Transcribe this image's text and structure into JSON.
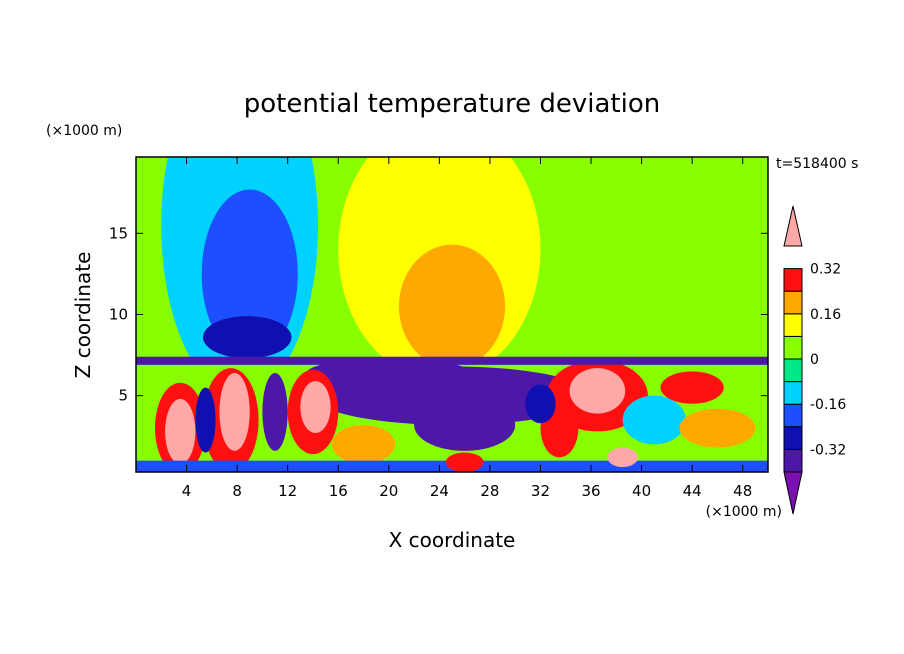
{
  "chart_data": {
    "type": "heatmap",
    "title": "potential temperature deviation",
    "xlabel": "X coordinate",
    "ylabel": "Z coordinate",
    "x_unit": "(×1000 m)",
    "y_unit": "(×1000 m)",
    "time_label": "t=518400 s",
    "xlim": [
      0,
      50
    ],
    "ylim": [
      0.3,
      19.7
    ],
    "x_ticks": [
      4,
      8,
      12,
      16,
      20,
      24,
      28,
      32,
      36,
      40,
      44,
      48
    ],
    "y_ticks": [
      5,
      10,
      15
    ],
    "colorbar": {
      "levels": [
        -0.4,
        -0.32,
        -0.24,
        -0.16,
        -0.08,
        0,
        0.08,
        0.16,
        0.24,
        0.32,
        0.4
      ],
      "labels": [
        "0.32",
        "0.16",
        "0",
        "-0.16",
        "-0.32"
      ],
      "label_values": [
        0.32,
        0.16,
        0,
        -0.16,
        -0.32
      ],
      "colors_bottom_to_top": [
        "#7b10b0",
        "#4d17a8",
        "#1010b0",
        "#1e4fff",
        "#00d2ff",
        "#00e888",
        "#88ff00",
        "#ffff00",
        "#ffa800",
        "#ff1010",
        "#ffa8a8"
      ],
      "extend": "both"
    },
    "regions": [
      {
        "type": "rect",
        "x": [
          0,
          50
        ],
        "z": [
          7.2,
          19.7
        ],
        "value": 0.04
      },
      {
        "type": "ellipse",
        "cx": 8.2,
        "cz": 15.5,
        "rx": 6.2,
        "rz": 10.5,
        "value": -0.12
      },
      {
        "type": "ellipse",
        "cx": 9.0,
        "cz": 12.5,
        "rx": 3.8,
        "rz": 5.2,
        "value": -0.2
      },
      {
        "type": "ellipse",
        "cx": 8.8,
        "cz": 8.6,
        "rx": 3.5,
        "rz": 1.3,
        "value": -0.28
      },
      {
        "type": "ellipse",
        "cx": 24.0,
        "cz": 14.0,
        "rx": 8.0,
        "rz": 8.0,
        "value": 0.12
      },
      {
        "type": "ellipse",
        "cx": 25.0,
        "cz": 10.5,
        "rx": 4.2,
        "rz": 3.8,
        "value": 0.2
      },
      {
        "type": "ellipse",
        "cx": 43.0,
        "cz": 13.5,
        "rx": 8.0,
        "rz": 7.5,
        "value": 0.0
      },
      {
        "type": "rect",
        "x": [
          0,
          50
        ],
        "z": [
          0.3,
          7.2
        ],
        "value": 0.02
      },
      {
        "type": "ellipse",
        "cx": 25.0,
        "cz": 5.0,
        "rx": 11.0,
        "rz": 1.8,
        "value": -0.36
      },
      {
        "type": "ellipse",
        "cx": 20.0,
        "cz": 6.4,
        "rx": 6.5,
        "rz": 0.9,
        "value": -0.36
      },
      {
        "type": "ellipse",
        "cx": 26.0,
        "cz": 3.2,
        "rx": 4.0,
        "rz": 1.6,
        "value": -0.36
      },
      {
        "type": "ellipse",
        "cx": 3.5,
        "cz": 3.0,
        "rx": 2.0,
        "rz": 2.8,
        "value": 0.28
      },
      {
        "type": "ellipse",
        "cx": 3.5,
        "cz": 2.8,
        "rx": 1.2,
        "rz": 2.0,
        "value": 0.36
      },
      {
        "type": "ellipse",
        "cx": 7.5,
        "cz": 3.5,
        "rx": 2.2,
        "rz": 3.2,
        "value": 0.28
      },
      {
        "type": "ellipse",
        "cx": 7.8,
        "cz": 4.0,
        "rx": 1.2,
        "rz": 2.4,
        "value": 0.36
      },
      {
        "type": "ellipse",
        "cx": 14.0,
        "cz": 4.0,
        "rx": 2.0,
        "rz": 2.6,
        "value": 0.28
      },
      {
        "type": "ellipse",
        "cx": 14.2,
        "cz": 4.3,
        "rx": 1.2,
        "rz": 1.6,
        "value": 0.36
      },
      {
        "type": "ellipse",
        "cx": 11.0,
        "cz": 4.0,
        "rx": 1.0,
        "rz": 2.4,
        "value": -0.36
      },
      {
        "type": "ellipse",
        "cx": 5.5,
        "cz": 3.5,
        "rx": 0.8,
        "rz": 2.0,
        "value": -0.28
      },
      {
        "type": "ellipse",
        "cx": 36.5,
        "cz": 5.0,
        "rx": 4.0,
        "rz": 2.2,
        "value": 0.28
      },
      {
        "type": "ellipse",
        "cx": 36.5,
        "cz": 5.3,
        "rx": 2.2,
        "rz": 1.4,
        "value": 0.36
      },
      {
        "type": "ellipse",
        "cx": 41.0,
        "cz": 3.5,
        "rx": 2.5,
        "rz": 1.5,
        "value": -0.16
      },
      {
        "type": "ellipse",
        "cx": 46.0,
        "cz": 3.0,
        "rx": 3.0,
        "rz": 1.2,
        "value": 0.16
      },
      {
        "type": "ellipse",
        "cx": 33.5,
        "cz": 3.0,
        "rx": 1.5,
        "rz": 1.8,
        "value": 0.24
      },
      {
        "type": "ellipse",
        "cx": 32.0,
        "cz": 4.5,
        "rx": 1.2,
        "rz": 1.2,
        "value": -0.28
      },
      {
        "type": "ellipse",
        "cx": 18.0,
        "cz": 2.0,
        "rx": 2.5,
        "rz": 1.2,
        "value": 0.16
      },
      {
        "type": "ellipse",
        "cx": 44.0,
        "cz": 5.5,
        "rx": 2.5,
        "rz": 1.0,
        "value": 0.28
      },
      {
        "type": "rect",
        "x": [
          0,
          50
        ],
        "z": [
          0.3,
          1.0
        ],
        "value": -0.2
      },
      {
        "type": "ellipse",
        "cx": 38.5,
        "cz": 1.2,
        "rx": 1.2,
        "rz": 0.6,
        "value": 0.32
      },
      {
        "type": "ellipse",
        "cx": 26.0,
        "cz": 0.9,
        "rx": 1.5,
        "rz": 0.6,
        "value": 0.28
      },
      {
        "type": "rect",
        "x": [
          0,
          50
        ],
        "z": [
          6.9,
          7.4
        ],
        "value": -0.36
      }
    ]
  }
}
